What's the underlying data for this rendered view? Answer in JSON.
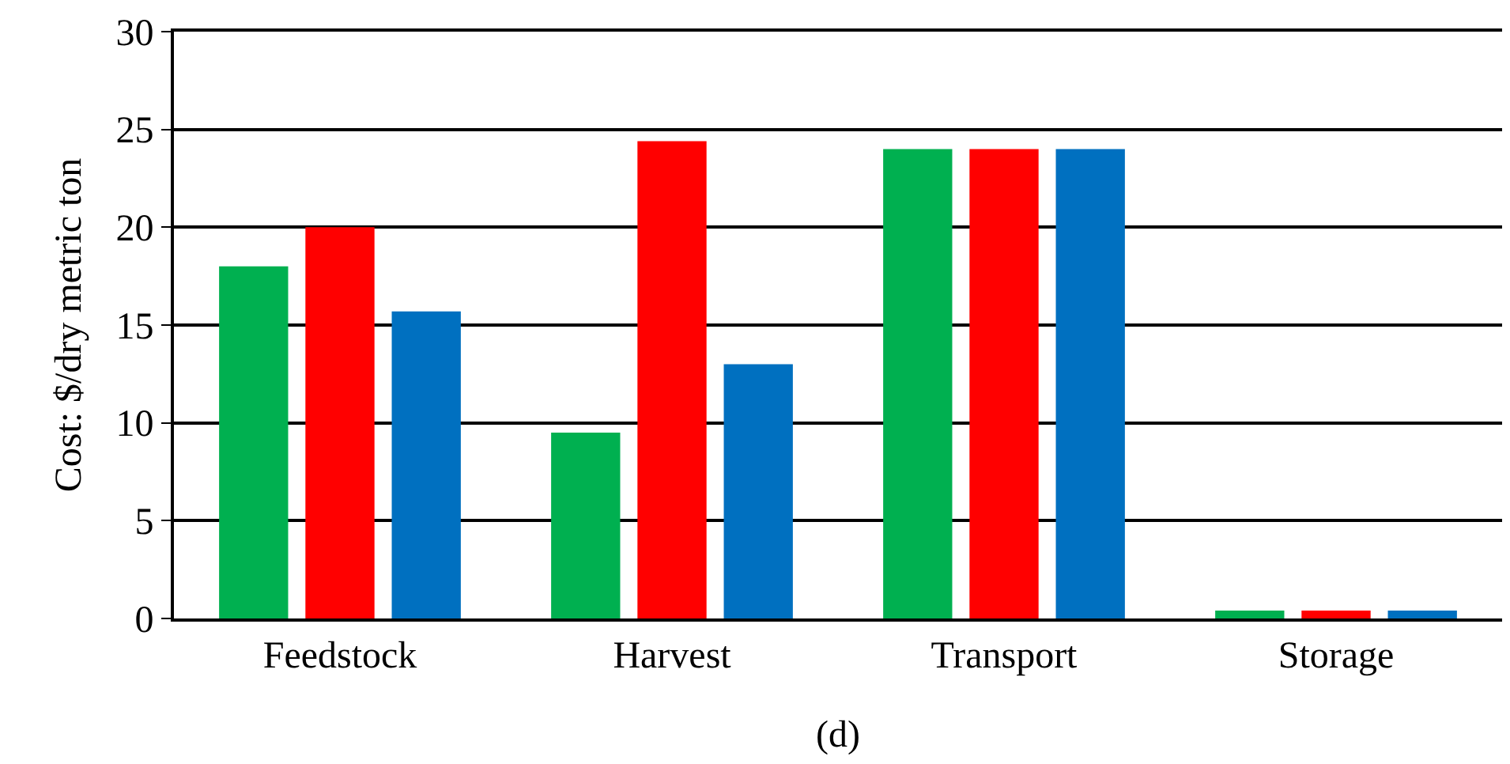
{
  "chart_data": {
    "type": "bar",
    "ylabel": "Cost: $/dry metric ton",
    "categories": [
      "Feedstock",
      "Harvest",
      "Transport",
      "Storage"
    ],
    "series": [
      {
        "color": "#00b050",
        "values": [
          18,
          9.5,
          24,
          0.4
        ]
      },
      {
        "color": "#ff0000",
        "values": [
          20,
          24.4,
          24,
          0.4
        ]
      },
      {
        "color": "#0070c0",
        "values": [
          15.7,
          13,
          24,
          0.4
        ]
      }
    ],
    "ylim": [
      0,
      30
    ],
    "yticks": [
      0,
      5,
      10,
      15,
      20,
      25,
      30
    ],
    "grid": "y",
    "annotations": [
      "(d)"
    ]
  }
}
